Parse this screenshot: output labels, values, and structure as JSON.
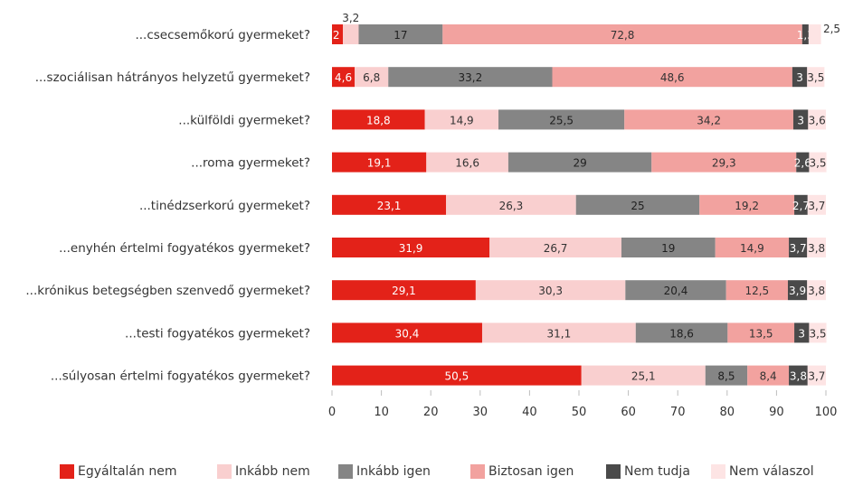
{
  "chart_data": {
    "type": "bar",
    "orientation": "horizontal",
    "stacked": true,
    "categories": [
      "...csecsemőkorú gyermeket?",
      "...szociálisan hátrányos helyzetű gyermeket?",
      "...külföldi gyermeket?",
      "...roma gyermeket?",
      "...tinédzserkorú gyermeket?",
      "...enyhén értelmi fogyatékos gyermeket?",
      "...krónikus betegségben szenvedő gyermeket?",
      "...testi fogyatékos gyermeket?",
      "...súlyosan értelmi fogyatékos gyermeket?"
    ],
    "series": [
      {
        "name": "Egyáltalán nem",
        "color": "#e32219",
        "label_color": "#ffffff",
        "values": [
          2.2,
          4.6,
          18.8,
          19.1,
          23.1,
          31.9,
          29.1,
          30.4,
          50.5
        ]
      },
      {
        "name": "Inkább nem",
        "color": "#f9cfcf",
        "label_color": "#333333",
        "values": [
          3.2,
          6.8,
          14.9,
          16.6,
          26.3,
          26.7,
          30.3,
          31.1,
          25.1
        ]
      },
      {
        "name": "Inkább igen",
        "color": "#858585",
        "label_color": "#1f1f1f",
        "values": [
          17,
          33.2,
          25.5,
          29,
          25,
          19,
          20.4,
          18.6,
          8.5
        ]
      },
      {
        "name": "Biztosan igen",
        "color": "#f2a29f",
        "label_color": "#333333",
        "values": [
          72.8,
          48.6,
          34.2,
          29.3,
          19.2,
          14.9,
          12.5,
          13.5,
          8.4
        ]
      },
      {
        "name": "Nem tudja",
        "color": "#4a4a4a",
        "label_color": "#ffffff",
        "values": [
          1.3,
          3,
          3,
          2.6,
          2.7,
          3.7,
          3.9,
          3,
          3.8
        ]
      },
      {
        "name": "Nem válaszol",
        "color": "#fde4e4",
        "label_color": "#333333",
        "values": [
          2.5,
          3.5,
          3.6,
          3.5,
          3.7,
          3.8,
          3.8,
          3.5,
          3.7
        ]
      }
    ],
    "value_labels": [
      [
        "2,2",
        "3,2",
        "17",
        "72,8",
        "1,3",
        "2,5"
      ],
      [
        "4,6",
        "6,8",
        "33,2",
        "48,6",
        "3",
        "3,5"
      ],
      [
        "18,8",
        "14,9",
        "25,5",
        "34,2",
        "3",
        "3,6"
      ],
      [
        "19,1",
        "16,6",
        "29",
        "29,3",
        "2,6",
        "3,5"
      ],
      [
        "23,1",
        "26,3",
        "25",
        "19,2",
        "2,7",
        "3,7"
      ],
      [
        "31,9",
        "26,7",
        "19",
        "14,9",
        "3,7",
        "3,8"
      ],
      [
        "29,1",
        "30,3",
        "20,4",
        "12,5",
        "3,9",
        "3,8"
      ],
      [
        "30,4",
        "31,1",
        "18,6",
        "13,5",
        "3",
        "3,5"
      ],
      [
        "50,5",
        "25,1",
        "8,5",
        "8,4",
        "3,8",
        "3,7"
      ]
    ],
    "xlim": [
      0,
      100
    ],
    "xticks": [
      0,
      10,
      20,
      30,
      40,
      50,
      60,
      70,
      80,
      90,
      100
    ],
    "xtick_labels": [
      "0",
      "10",
      "20",
      "30",
      "40",
      "50",
      "60",
      "70",
      "80",
      "90",
      "100"
    ],
    "grid": false,
    "legend_position": "bottom",
    "title": "",
    "xlabel": "",
    "ylabel": ""
  }
}
